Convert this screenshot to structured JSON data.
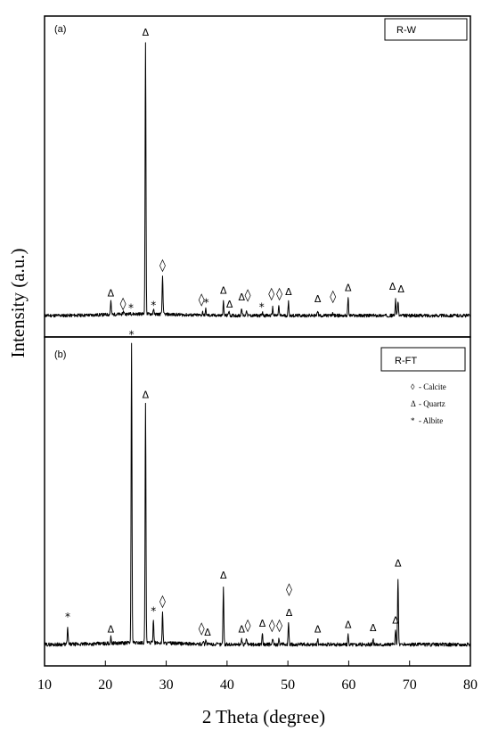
{
  "chart_data": {
    "type": "line",
    "xlabel": "2 Theta (degree)",
    "ylabel": "Intensity (a.u.)",
    "xlim": [
      10,
      80
    ],
    "x_ticks": [
      "10",
      "20",
      "30",
      "40",
      "50",
      "60",
      "70",
      "80"
    ],
    "grid": false,
    "legend": {
      "placement": "right-of-panel-b",
      "entries": [
        {
          "symbol": "◊",
          "label": "- Calcite"
        },
        {
          "symbol": "Δ",
          "label": "- Quartz"
        },
        {
          "symbol": "*",
          "label": "- Albite"
        }
      ]
    },
    "panels": [
      {
        "tag": "(a)",
        "sample": "R-W",
        "peaks": [
          {
            "x": 20.9,
            "y": 0.05
          },
          {
            "x": 23.0,
            "y": 0.012
          },
          {
            "x": 24.1,
            "y": 0.006
          },
          {
            "x": 26.6,
            "y": 1.0
          },
          {
            "x": 27.9,
            "y": 0.018
          },
          {
            "x": 29.4,
            "y": 0.14
          },
          {
            "x": 36.0,
            "y": 0.012
          },
          {
            "x": 36.5,
            "y": 0.022
          },
          {
            "x": 39.4,
            "y": 0.05
          },
          {
            "x": 40.3,
            "y": 0.018
          },
          {
            "x": 42.4,
            "y": 0.03
          },
          {
            "x": 43.2,
            "y": 0.022
          },
          {
            "x": 45.8,
            "y": 0.012
          },
          {
            "x": 47.5,
            "y": 0.03
          },
          {
            "x": 48.5,
            "y": 0.035
          },
          {
            "x": 50.1,
            "y": 0.05
          },
          {
            "x": 54.9,
            "y": 0.02
          },
          {
            "x": 57.4,
            "y": 0.01
          },
          {
            "x": 59.9,
            "y": 0.065
          },
          {
            "x": 67.7,
            "y": 0.06
          },
          {
            "x": 68.1,
            "y": 0.055
          }
        ],
        "markers": [
          {
            "symbol": "Δ",
            "x": 20.9,
            "y": 0.07
          },
          {
            "symbol": "◊",
            "x": 22.9,
            "y": 0.03
          },
          {
            "symbol": "*",
            "x": 24.2,
            "y": 0.015
          },
          {
            "symbol": "Δ",
            "x": 26.6,
            "y": 1.03
          },
          {
            "symbol": "*",
            "x": 27.9,
            "y": 0.025
          },
          {
            "symbol": "◊",
            "x": 29.4,
            "y": 0.17
          },
          {
            "symbol": "◊",
            "x": 35.8,
            "y": 0.045
          },
          {
            "symbol": "*",
            "x": 36.6,
            "y": 0.035
          },
          {
            "symbol": "Δ",
            "x": 39.4,
            "y": 0.08
          },
          {
            "symbol": "Δ",
            "x": 40.4,
            "y": 0.03
          },
          {
            "symbol": "Δ",
            "x": 42.4,
            "y": 0.055
          },
          {
            "symbol": "◊",
            "x": 43.4,
            "y": 0.06
          },
          {
            "symbol": "*",
            "x": 45.7,
            "y": 0.018
          },
          {
            "symbol": "◊",
            "x": 47.3,
            "y": 0.065
          },
          {
            "symbol": "◊",
            "x": 48.6,
            "y": 0.065
          },
          {
            "symbol": "Δ",
            "x": 50.1,
            "y": 0.075
          },
          {
            "symbol": "Δ",
            "x": 54.9,
            "y": 0.05
          },
          {
            "symbol": "◊",
            "x": 57.4,
            "y": 0.055
          },
          {
            "symbol": "Δ",
            "x": 59.9,
            "y": 0.09
          },
          {
            "symbol": "Δ",
            "x": 67.2,
            "y": 0.095
          },
          {
            "symbol": "Δ",
            "x": 68.6,
            "y": 0.085
          }
        ]
      },
      {
        "tag": "(b)",
        "sample": "R-FT",
        "peaks": [
          {
            "x": 13.8,
            "y": 0.055
          },
          {
            "x": 20.9,
            "y": 0.02
          },
          {
            "x": 24.3,
            "y": 1.0
          },
          {
            "x": 26.6,
            "y": 0.8
          },
          {
            "x": 27.9,
            "y": 0.08
          },
          {
            "x": 29.4,
            "y": 0.1
          },
          {
            "x": 36.1,
            "y": 0.012
          },
          {
            "x": 36.5,
            "y": 0.015
          },
          {
            "x": 39.4,
            "y": 0.19
          },
          {
            "x": 42.4,
            "y": 0.018
          },
          {
            "x": 43.2,
            "y": 0.02
          },
          {
            "x": 45.8,
            "y": 0.04
          },
          {
            "x": 47.5,
            "y": 0.02
          },
          {
            "x": 48.5,
            "y": 0.018
          },
          {
            "x": 50.1,
            "y": 0.07
          },
          {
            "x": 54.9,
            "y": 0.018
          },
          {
            "x": 59.9,
            "y": 0.03
          },
          {
            "x": 64.0,
            "y": 0.018
          },
          {
            "x": 67.7,
            "y": 0.045
          },
          {
            "x": 68.1,
            "y": 0.22
          }
        ],
        "markers": [
          {
            "symbol": "*",
            "x": 13.8,
            "y": 0.08
          },
          {
            "symbol": "Δ",
            "x": 20.9,
            "y": 0.04
          },
          {
            "symbol": "*",
            "x": 24.3,
            "y": 1.02
          },
          {
            "symbol": "Δ",
            "x": 26.6,
            "y": 0.82
          },
          {
            "symbol": "*",
            "x": 27.9,
            "y": 0.1
          },
          {
            "symbol": "◊",
            "x": 29.4,
            "y": 0.13
          },
          {
            "symbol": "◊",
            "x": 35.8,
            "y": 0.04
          },
          {
            "symbol": "Δ",
            "x": 36.8,
            "y": 0.03
          },
          {
            "symbol": "Δ",
            "x": 39.4,
            "y": 0.22
          },
          {
            "symbol": "Δ",
            "x": 42.4,
            "y": 0.04
          },
          {
            "symbol": "◊",
            "x": 43.4,
            "y": 0.05
          },
          {
            "symbol": "Δ",
            "x": 45.8,
            "y": 0.06
          },
          {
            "symbol": "◊",
            "x": 47.4,
            "y": 0.05
          },
          {
            "symbol": "◊",
            "x": 48.6,
            "y": 0.05
          },
          {
            "symbol": "◊",
            "x": 50.2,
            "y": 0.17
          },
          {
            "symbol": "Δ",
            "x": 50.2,
            "y": 0.095
          },
          {
            "symbol": "Δ",
            "x": 54.9,
            "y": 0.04
          },
          {
            "symbol": "Δ",
            "x": 59.9,
            "y": 0.055
          },
          {
            "symbol": "Δ",
            "x": 64.0,
            "y": 0.045
          },
          {
            "symbol": "Δ",
            "x": 67.7,
            "y": 0.07
          },
          {
            "symbol": "Δ",
            "x": 68.1,
            "y": 0.26
          }
        ]
      }
    ]
  }
}
